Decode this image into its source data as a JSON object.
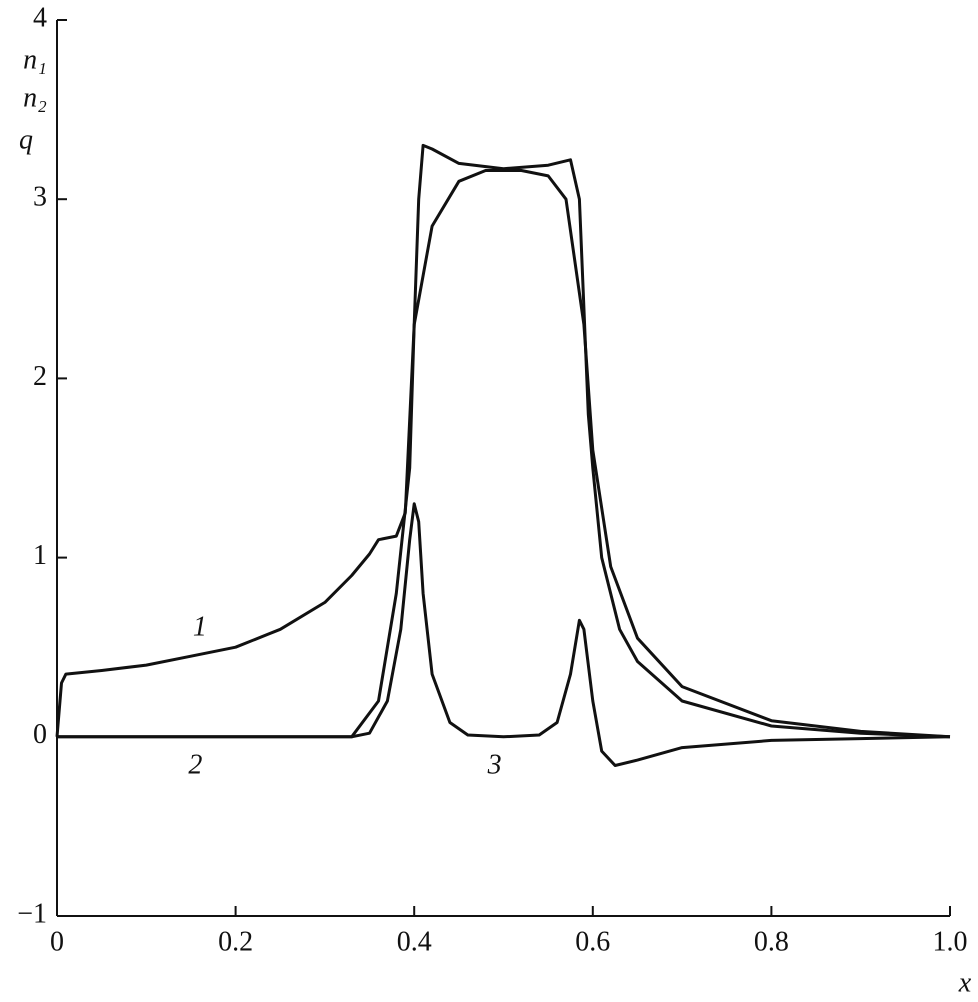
{
  "chart_data": {
    "type": "line",
    "ylabel": [
      "n₁",
      "n₂",
      "q"
    ],
    "xlabel": "x",
    "xlim": [
      0,
      1
    ],
    "ylim": [
      -1,
      4
    ],
    "xticks": [
      0,
      0.2,
      0.4,
      0.6,
      0.8,
      {
        "value": 1,
        "label": "1.0"
      }
    ],
    "yticks": [
      {
        "value": -1,
        "label": "−1"
      },
      0,
      1,
      2,
      3,
      4
    ],
    "grid": false,
    "series": [
      {
        "name": "1",
        "color": "#111111",
        "x": [
          0,
          0.005,
          0.01,
          0.05,
          0.1,
          0.15,
          0.2,
          0.25,
          0.3,
          0.33,
          0.35,
          0.36,
          0.38,
          0.39,
          0.4,
          0.42,
          0.45,
          0.48,
          0.52,
          0.55,
          0.57,
          0.59,
          0.6,
          0.62,
          0.65,
          0.7,
          0.8,
          0.9,
          1.0
        ],
        "values": [
          0,
          0.3,
          0.35,
          0.37,
          0.4,
          0.45,
          0.5,
          0.6,
          0.75,
          0.9,
          1.02,
          1.1,
          1.12,
          1.25,
          2.3,
          2.85,
          3.1,
          3.16,
          3.16,
          3.13,
          3.0,
          2.3,
          1.6,
          0.95,
          0.55,
          0.28,
          0.09,
          0.03,
          0
        ]
      },
      {
        "name": "2",
        "color": "#111111",
        "x": [
          0,
          0.1,
          0.2,
          0.3,
          0.33,
          0.36,
          0.38,
          0.395,
          0.4,
          0.405,
          0.41,
          0.42,
          0.45,
          0.5,
          0.55,
          0.575,
          0.585,
          0.595,
          0.6,
          0.61,
          0.63,
          0.65,
          0.7,
          0.8,
          0.9,
          1.0
        ],
        "values": [
          0,
          0,
          0,
          0,
          0,
          0.2,
          0.8,
          1.5,
          2.3,
          3.0,
          3.3,
          3.28,
          3.2,
          3.17,
          3.19,
          3.22,
          3.0,
          1.8,
          1.5,
          1.0,
          0.6,
          0.42,
          0.2,
          0.06,
          0.02,
          0
        ]
      },
      {
        "name": "3",
        "color": "#111111",
        "x": [
          0,
          0.1,
          0.2,
          0.3,
          0.33,
          0.35,
          0.37,
          0.385,
          0.395,
          0.4,
          0.405,
          0.41,
          0.42,
          0.44,
          0.46,
          0.5,
          0.54,
          0.56,
          0.575,
          0.585,
          0.59,
          0.6,
          0.61,
          0.625,
          0.65,
          0.7,
          0.8,
          0.9,
          1.0
        ],
        "values": [
          0,
          0,
          0,
          0,
          0,
          0.02,
          0.2,
          0.6,
          1.1,
          1.3,
          1.2,
          0.8,
          0.35,
          0.08,
          0.01,
          0,
          0.01,
          0.08,
          0.35,
          0.65,
          0.6,
          0.2,
          -0.08,
          -0.16,
          -0.13,
          -0.06,
          -0.02,
          -0.01,
          0
        ]
      }
    ]
  }
}
